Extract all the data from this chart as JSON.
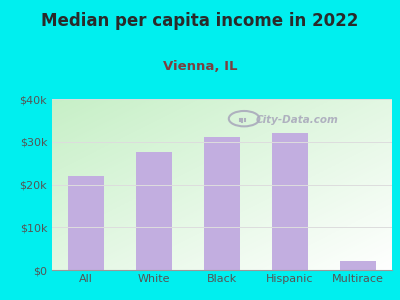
{
  "title": "Median per capita income in 2022",
  "subtitle": "Vienna, IL",
  "categories": [
    "All",
    "White",
    "Black",
    "Hispanic",
    "Multirace"
  ],
  "values": [
    22000,
    27500,
    31200,
    32000,
    2000
  ],
  "bar_color": "#c2aee0",
  "background_color": "#00efef",
  "plot_bg_color_topleft": "#c8eec8",
  "plot_bg_color_bottomright": "#ffffff",
  "title_color": "#2a2a2a",
  "subtitle_color": "#7a4040",
  "tick_color": "#555555",
  "grid_color": "#dddddd",
  "ylim": [
    0,
    40000
  ],
  "yticks": [
    0,
    10000,
    20000,
    30000,
    40000
  ],
  "ytick_labels": [
    "$0",
    "$10k",
    "$20k",
    "$30k",
    "$40k"
  ],
  "watermark": "City-Data.com",
  "watermark_color": "#aaaabc",
  "title_fontsize": 12,
  "subtitle_fontsize": 9.5
}
